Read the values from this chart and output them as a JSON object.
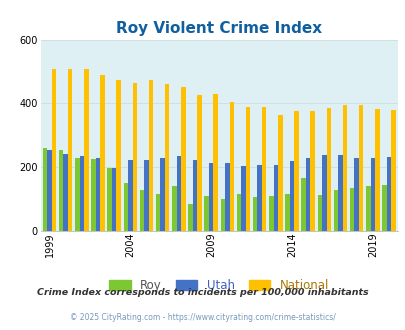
{
  "title": "Roy Violent Crime Index",
  "title_color": "#1060a0",
  "years": [
    1999,
    2000,
    2001,
    2002,
    2003,
    2004,
    2005,
    2006,
    2007,
    2008,
    2009,
    2010,
    2011,
    2012,
    2013,
    2014,
    2015,
    2016,
    2017,
    2018,
    2019,
    2020
  ],
  "roy": [
    260,
    255,
    230,
    225,
    198,
    150,
    130,
    115,
    140,
    85,
    110,
    100,
    115,
    108,
    110,
    115,
    165,
    113,
    130,
    135,
    140,
    145
  ],
  "utah": [
    253,
    240,
    235,
    230,
    198,
    224,
    224,
    228,
    234,
    222,
    213,
    213,
    205,
    208,
    208,
    218,
    228,
    238,
    238,
    230,
    228,
    233
  ],
  "national": [
    507,
    507,
    507,
    490,
    473,
    465,
    472,
    460,
    450,
    425,
    430,
    405,
    390,
    390,
    365,
    375,
    375,
    385,
    395,
    395,
    383,
    378
  ],
  "roy_color": "#7dc832",
  "utah_color": "#4472c4",
  "national_color": "#ffc000",
  "bg_color": "#dff0f5",
  "ylim": [
    0,
    600
  ],
  "yticks": [
    0,
    200,
    400,
    600
  ],
  "tick_years": [
    1999,
    2004,
    2009,
    2014,
    2019
  ],
  "legend_labels": [
    "Roy",
    "Utah",
    "National"
  ],
  "footnote1": "Crime Index corresponds to incidents per 100,000 inhabitants",
  "footnote2": "© 2025 CityRating.com - https://www.cityrating.com/crime-statistics/"
}
